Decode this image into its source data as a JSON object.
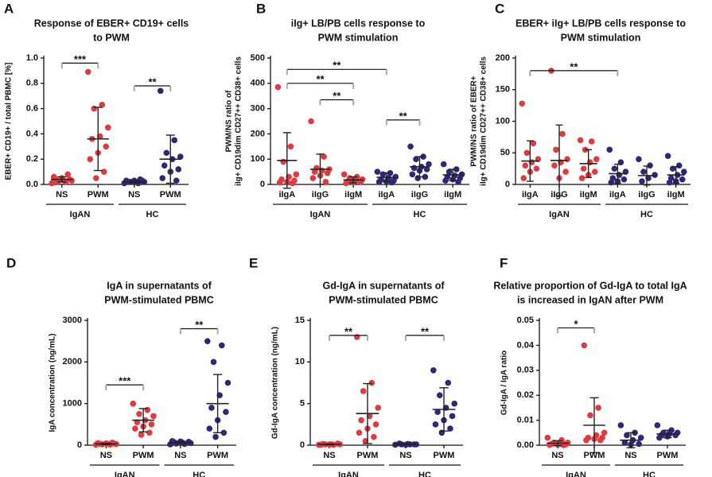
{
  "chart_data": [
    {
      "type": "dotplot",
      "panel": "A",
      "title": [
        "Response of EBER+ CD19+ cells",
        "to PWM"
      ],
      "ylabel": [
        "EBER+ CD19+ / total PBMC [%]"
      ],
      "ylim": [
        0,
        1
      ],
      "yticks": [
        {
          "value": 0,
          "label": "0.0"
        },
        {
          "value": 0.2,
          "label": "0.2"
        },
        {
          "value": 0.4,
          "label": "0.4"
        },
        {
          "value": 0.6,
          "label": "0.6"
        },
        {
          "value": 0.8,
          "label": "0.8"
        },
        {
          "value": 1,
          "label": "1.0"
        }
      ],
      "categories": [
        "NS",
        "PWM",
        "NS",
        "PWM"
      ],
      "colors": [
        "#e03a3e",
        "#e03a3e",
        "#2e2878",
        "#2e2878"
      ],
      "values": [
        [
          0.01,
          0.02,
          0.02,
          0.03,
          0.03,
          0.04,
          0.04,
          0.05,
          0.06,
          0.08
        ],
        [
          0.89,
          0.63,
          0.6,
          0.45,
          0.38,
          0.36,
          0.3,
          0.25,
          0.2,
          0.1,
          0.05
        ],
        [
          0.01,
          0.01,
          0.02,
          0.02,
          0.02,
          0.02,
          0.03,
          0.03,
          0.03,
          0.04
        ],
        [
          0.74,
          0.35,
          0.25,
          0.22,
          0.2,
          0.15,
          0.12,
          0.1,
          0.05,
          0.03
        ]
      ],
      "means": [
        0.04,
        0.36,
        0.02,
        0.2
      ],
      "sd": [
        0.02,
        0.25,
        0.01,
        0.19
      ],
      "brackets": [
        {
          "label": "***",
          "categories": [
            0,
            1
          ],
          "y": 0.96
        },
        {
          "label": "**",
          "categories": [
            2,
            3
          ],
          "y": 0.78
        }
      ],
      "groups": [
        {
          "label": "IgAN",
          "categories": [
            0,
            1
          ]
        },
        {
          "label": "HC",
          "categories": [
            2,
            3
          ]
        }
      ]
    },
    {
      "type": "dotplot",
      "panel": "B",
      "title": [
        "iIg+ LB/PB cells response to",
        "PWM stimulation"
      ],
      "ylabel": [
        "PWM/NS ratio of",
        "iIg+ CD19dim CD27++ CD38+ cells"
      ],
      "ylim": [
        0,
        500
      ],
      "yticks": [
        0,
        100,
        200,
        300,
        400,
        500
      ],
      "categories": [
        "iIgA",
        "iIgG",
        "iIgM",
        "iIgA",
        "iIgG",
        "iIgM"
      ],
      "colors": [
        "#e03a3e",
        "#e03a3e",
        "#e03a3e",
        "#2e2878",
        "#2e2878",
        "#2e2878"
      ],
      "values": [
        [
          385,
          150,
          90,
          40,
          30,
          20,
          15,
          10,
          8,
          5
        ],
        [
          250,
          110,
          65,
          60,
          55,
          50,
          45,
          35,
          25,
          10
        ],
        [
          40,
          30,
          25,
          20,
          15,
          12,
          10,
          8,
          5
        ],
        [
          50,
          45,
          40,
          30,
          25,
          20,
          15,
          12,
          10,
          8
        ],
        [
          150,
          110,
          100,
          80,
          70,
          65,
          60,
          55,
          40,
          30,
          25
        ],
        [
          80,
          60,
          50,
          40,
          35,
          30,
          25,
          20,
          15,
          10
        ]
      ],
      "means": [
        95,
        60,
        18,
        28,
        70,
        38
      ],
      "sd": [
        110,
        60,
        12,
        18,
        40,
        22
      ],
      "brackets": [
        {
          "label": "**",
          "categories": [
            0,
            3
          ],
          "y": 455
        },
        {
          "label": "**",
          "categories": [
            0,
            2
          ],
          "y": 400
        },
        {
          "label": "**",
          "categories": [
            1,
            2
          ],
          "y": 335
        },
        {
          "label": "**",
          "categories": [
            3,
            4
          ],
          "y": 255
        }
      ],
      "groups": [
        {
          "label": "IgAN",
          "categories": [
            0,
            2
          ]
        },
        {
          "label": "HC",
          "categories": [
            3,
            5
          ]
        }
      ]
    },
    {
      "type": "dotplot",
      "panel": "C",
      "title": [
        "EBER+ iIg+ LB/PB cells response to",
        "PWM stimulation"
      ],
      "ylabel": [
        "PWM/NS ratio of EBER+",
        "iIg+ CD19dim CD27++ CD38+ cells"
      ],
      "ylim": [
        0,
        200
      ],
      "yticks": [
        0,
        50,
        100,
        150,
        200
      ],
      "categories": [
        "iIgA",
        "iIgG",
        "iIgM",
        "iIgA",
        "iIgG",
        "iIgM"
      ],
      "colors": [
        "#e03a3e",
        "#e03a3e",
        "#e03a3e",
        "#2e2878",
        "#2e2878",
        "#2e2878"
      ],
      "values": [
        [
          128,
          65,
          50,
          40,
          35,
          30,
          25,
          20,
          10
        ],
        [
          180,
          80,
          55,
          40,
          35,
          30,
          20,
          10
        ],
        [
          70,
          68,
          55,
          40,
          35,
          25,
          20,
          15,
          10
        ],
        [
          55,
          35,
          25,
          20,
          15,
          10,
          8,
          5,
          3
        ],
        [
          40,
          30,
          20,
          15,
          10,
          5
        ],
        [
          45,
          30,
          25,
          20,
          15,
          10,
          8,
          5,
          3
        ]
      ],
      "means": [
        37,
        38,
        33,
        17,
        14,
        15
      ],
      "sd": [
        32,
        56,
        22,
        15,
        15,
        13
      ],
      "brackets": [
        {
          "label": "**",
          "categories": [
            0,
            3
          ],
          "y": 180
        }
      ],
      "groups": [
        {
          "label": "IgAN",
          "categories": [
            0,
            2
          ]
        },
        {
          "label": "HC",
          "categories": [
            3,
            5
          ]
        }
      ]
    },
    {
      "type": "dotplot",
      "panel": "D",
      "title": [
        "IgA in supernatants of",
        "PWM-stimulated PBMC"
      ],
      "ylabel": [
        "IgA concentration  (ng/mL)"
      ],
      "ylim": [
        0,
        3000
      ],
      "yticks": [
        0,
        1000,
        2000,
        3000
      ],
      "categories": [
        "NS",
        "PWM",
        "NS",
        "PWM"
      ],
      "colors": [
        "#e03a3e",
        "#e03a3e",
        "#2e2878",
        "#2e2878"
      ],
      "values": [
        [
          10,
          15,
          20,
          25,
          30,
          35,
          40,
          45,
          50,
          60
        ],
        [
          1000,
          850,
          750,
          700,
          600,
          550,
          500,
          450,
          400,
          300,
          250
        ],
        [
          20,
          30,
          40,
          50,
          60,
          70,
          80,
          90,
          100
        ],
        [
          2500,
          2400,
          2000,
          1500,
          1200,
          900,
          800,
          600,
          400,
          300,
          200
        ]
      ],
      "means": [
        30,
        600,
        60,
        1000
      ],
      "sd": [
        15,
        280,
        25,
        700
      ],
      "brackets": [
        {
          "label": "***",
          "categories": [
            0,
            1
          ],
          "y": 1450
        },
        {
          "label": "**",
          "categories": [
            2,
            3
          ],
          "y": 2800
        }
      ],
      "groups": [
        {
          "label": "IgAN",
          "categories": [
            0,
            1
          ]
        },
        {
          "label": "HC",
          "categories": [
            2,
            3
          ]
        }
      ]
    },
    {
      "type": "dotplot",
      "panel": "E",
      "title": [
        "Gd-IgA in supernatants of",
        "PWM-stimulated PBMC"
      ],
      "ylabel": [
        "Gd-IgA concentration (ng/mL)"
      ],
      "ylim": [
        0,
        15
      ],
      "yticks": [
        0,
        5,
        10,
        15
      ],
      "categories": [
        "NS",
        "PWM",
        "NS",
        "PWM"
      ],
      "colors": [
        "#e03a3e",
        "#e03a3e",
        "#2e2878",
        "#2e2878"
      ],
      "values": [
        [
          0.05,
          0.05,
          0.1,
          0.1,
          0.1,
          0.15,
          0.2,
          0.1,
          0.05
        ],
        [
          13,
          7.5,
          6.5,
          4.5,
          3.5,
          3,
          2.5,
          2,
          1.5,
          1,
          0.5
        ],
        [
          0.05,
          0.1,
          0.1,
          0.1,
          0.15,
          0.2,
          0.1,
          0.05
        ],
        [
          9,
          7.5,
          6,
          5,
          4.5,
          4,
          3.5,
          3,
          2.5,
          2,
          1.5
        ]
      ],
      "means": [
        0.1,
        3.8,
        0.1,
        4.3
      ],
      "sd": [
        0.05,
        3.6,
        0.05,
        2.6
      ],
      "brackets": [
        {
          "label": "**",
          "categories": [
            0,
            1
          ],
          "y": 13.2
        },
        {
          "label": "**",
          "categories": [
            2,
            3
          ],
          "y": 13.2
        }
      ],
      "groups": [
        {
          "label": "IgAN",
          "categories": [
            0,
            1
          ]
        },
        {
          "label": "HC",
          "categories": [
            2,
            3
          ]
        }
      ]
    },
    {
      "type": "dotplot",
      "panel": "F",
      "title": [
        "Relative proportion of Gd-IgA to total IgA",
        "is increased in IgAN after PWM"
      ],
      "ylabel": [
        "Gd-IgA / IgA ratio"
      ],
      "ylim": [
        0,
        0.05
      ],
      "yticks": [
        {
          "value": 0,
          "label": "0.00"
        },
        {
          "value": 0.01,
          "label": "0.01"
        },
        {
          "value": 0.02,
          "label": "0.02"
        },
        {
          "value": 0.03,
          "label": "0.03"
        },
        {
          "value": 0.04,
          "label": "0.04"
        },
        {
          "value": 0.05,
          "label": "0.05"
        }
      ],
      "categories": [
        "NS",
        "PWM",
        "NS",
        "PWM"
      ],
      "colors": [
        "#e03a3e",
        "#e03a3e",
        "#2e2878",
        "#2e2878"
      ],
      "values": [
        [
          0.003,
          0.002,
          0.001,
          0.001,
          0.0005,
          0.0005,
          0.0003,
          0.0002,
          0.0001,
          0
        ],
        [
          0.04,
          0.015,
          0.012,
          0.005,
          0.004,
          0.003,
          0.003,
          0.0025,
          0.002,
          0.002
        ],
        [
          0.008,
          0.005,
          0.004,
          0.003,
          0.002,
          0.001,
          0.0005,
          0.0003
        ],
        [
          0.008,
          0.006,
          0.005,
          0.005,
          0.0045,
          0.004,
          0.004,
          0.0035,
          0.003
        ]
      ],
      "means": [
        0.0008,
        0.008,
        0.002,
        0.0045
      ],
      "sd": [
        0.001,
        0.011,
        0.003,
        0.0015
      ],
      "brackets": [
        {
          "label": "*",
          "categories": [
            0,
            1
          ],
          "y": 0.047
        }
      ],
      "groups": [
        {
          "label": "IgAN",
          "categories": [
            0,
            1
          ]
        },
        {
          "label": "HC",
          "categories": [
            2,
            3
          ]
        }
      ]
    }
  ]
}
